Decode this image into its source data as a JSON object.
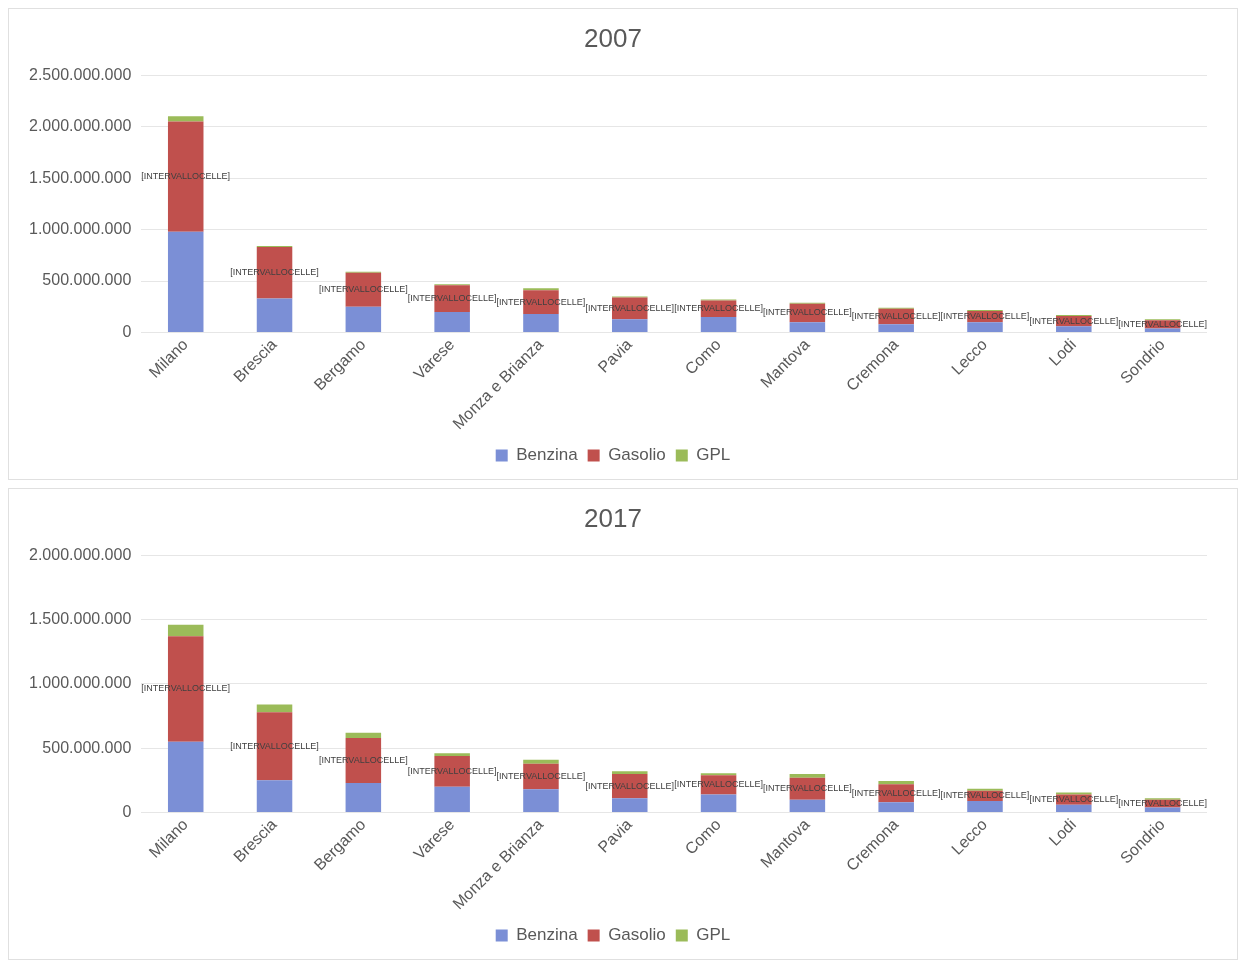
{
  "chart_data": [
    {
      "type": "bar",
      "title": "2007",
      "stacked": true,
      "grid": "y",
      "legend": "bottom",
      "categories": [
        "Milano",
        "Brescia",
        "Bergamo",
        "Varese",
        "Monza e Brianza",
        "Pavia",
        "Como",
        "Mantova",
        "Cremona",
        "Lecco",
        "Lodi",
        "Sondrio"
      ],
      "ylim": [
        0,
        2500000000
      ],
      "yticks": [
        {
          "value": 0,
          "label": "0"
        },
        {
          "value": 500000000,
          "label": "500.000.000"
        },
        {
          "value": 1000000000,
          "label": "1.000.000.000"
        },
        {
          "value": 1500000000,
          "label": "1.500.000.000"
        },
        {
          "value": 2000000000,
          "label": "2.000.000.000"
        },
        {
          "value": 2500000000,
          "label": "2.500.000.000"
        }
      ],
      "series": [
        {
          "name": "Benzina",
          "color": "#7b8fd6",
          "values": [
            980000000,
            330000000,
            250000000,
            200000000,
            180000000,
            130000000,
            150000000,
            100000000,
            80000000,
            100000000,
            60000000,
            40000000
          ]
        },
        {
          "name": "Gasolio",
          "color": "#c0504d",
          "values": [
            1070000000,
            500000000,
            330000000,
            260000000,
            230000000,
            210000000,
            160000000,
            180000000,
            150000000,
            110000000,
            100000000,
            80000000
          ],
          "value_labels": [
            "[INTERVALLOCELLE]",
            "[INTERVALLOCELLE]",
            "[INTERVALLOCELLE]",
            "[INTERVALLOCELLE]",
            "[INTERVALLOCELLE]",
            "[INTERVALLOCELLE]",
            "[INTERVALLOCELLE]",
            "[INTERVALLOCELLE]",
            "[INTERVALLOCELLE]",
            "[INTERVALLOCELLE]",
            "[INTERVALLOCELLE]",
            "[INTERVALLOCELLE]"
          ]
        },
        {
          "name": "GPL",
          "color": "#9bbb59",
          "values": [
            50000000,
            10000000,
            10000000,
            10000000,
            20000000,
            10000000,
            10000000,
            10000000,
            10000000,
            10000000,
            10000000,
            10000000
          ]
        }
      ]
    },
    {
      "type": "bar",
      "title": "2017",
      "stacked": true,
      "grid": "y",
      "legend": "bottom",
      "categories": [
        "Milano",
        "Brescia",
        "Bergamo",
        "Varese",
        "Monza e Brianza",
        "Pavia",
        "Como",
        "Mantova",
        "Cremona",
        "Lecco",
        "Lodi",
        "Sondrio"
      ],
      "ylim": [
        0,
        2000000000
      ],
      "yticks": [
        {
          "value": 0,
          "label": "0"
        },
        {
          "value": 500000000,
          "label": "500.000.000"
        },
        {
          "value": 1000000000,
          "label": "1.000.000.000"
        },
        {
          "value": 1500000000,
          "label": "1.500.000.000"
        },
        {
          "value": 2000000000,
          "label": "2.000.000.000"
        }
      ],
      "series": [
        {
          "name": "Benzina",
          "color": "#7b8fd6",
          "values": [
            550000000,
            250000000,
            230000000,
            200000000,
            180000000,
            110000000,
            140000000,
            100000000,
            80000000,
            90000000,
            60000000,
            40000000
          ]
        },
        {
          "name": "Gasolio",
          "color": "#c0504d",
          "values": [
            820000000,
            530000000,
            350000000,
            240000000,
            200000000,
            190000000,
            150000000,
            170000000,
            140000000,
            80000000,
            80000000,
            60000000
          ],
          "value_labels": [
            "[INTERVALLOCELLE]",
            "[INTERVALLOCELLE]",
            "[INTERVALLOCELLE]",
            "[INTERVALLOCELLE]",
            "[INTERVALLOCELLE]",
            "[INTERVALLOCELLE]",
            "[INTERVALLOCELLE]",
            "[INTERVALLOCELLE]",
            "[INTERVALLOCELLE]",
            "[INTERVALLOCELLE]",
            "[INTERVALLOCELLE]",
            "[INTERVALLOCELLE]"
          ]
        },
        {
          "name": "GPL",
          "color": "#9bbb59",
          "values": [
            90000000,
            60000000,
            40000000,
            20000000,
            30000000,
            20000000,
            15000000,
            30000000,
            25000000,
            15000000,
            15000000,
            10000000
          ]
        }
      ]
    }
  ]
}
